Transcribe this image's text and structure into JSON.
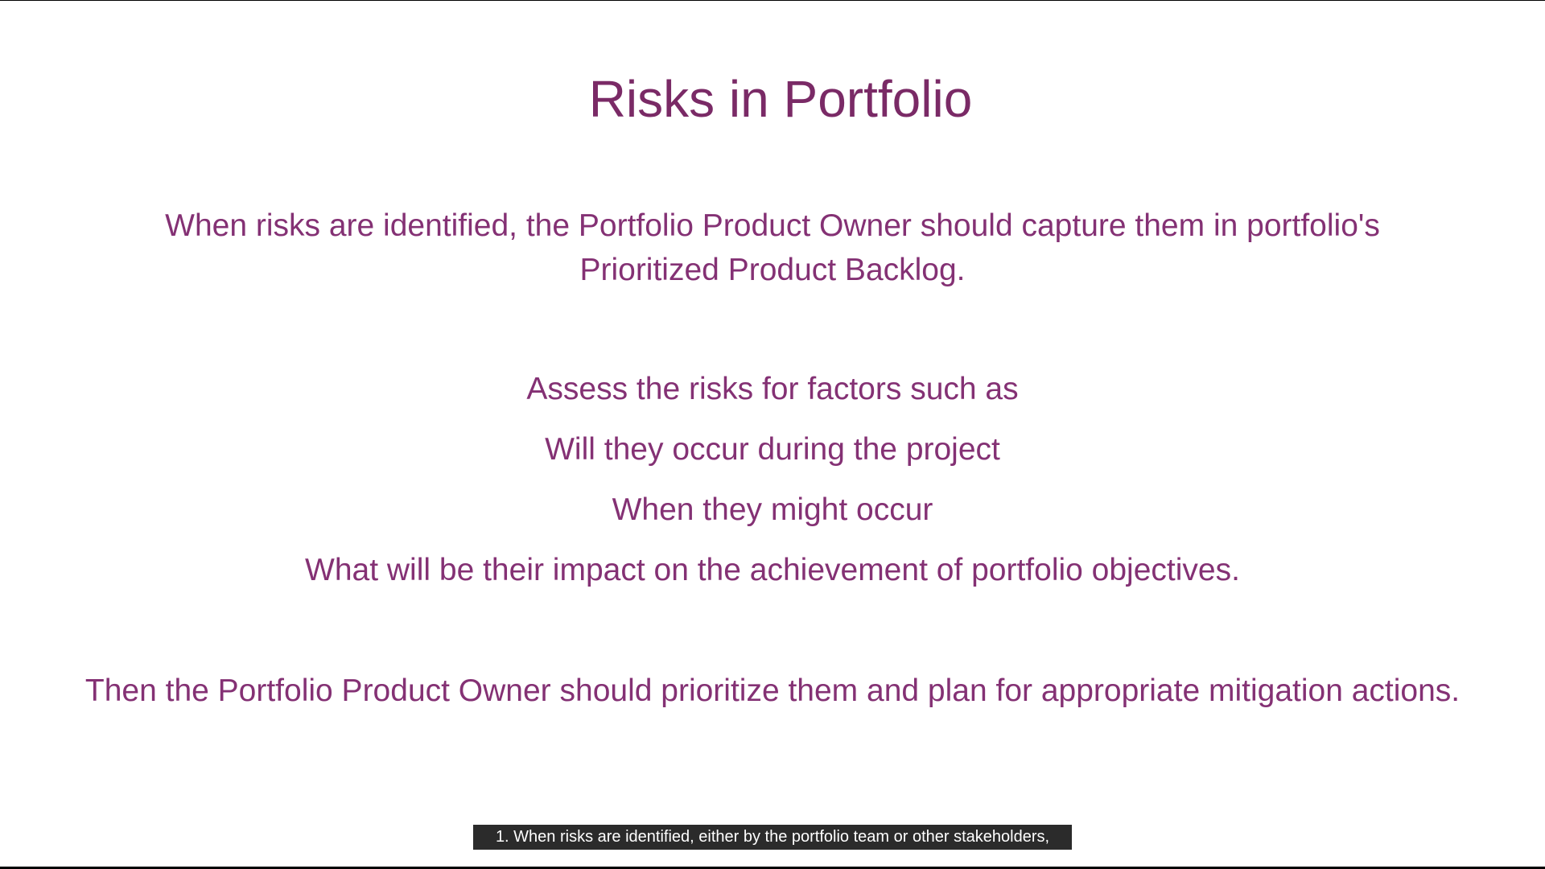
{
  "slide": {
    "title": "Risks in Portfolio",
    "paragraph_1": "When risks are identified, the Portfolio Product Owner should capture them in portfolio's Prioritized Product Backlog.",
    "assess_heading": "Assess the risks for factors such as",
    "factor_1": "Will they occur during the project",
    "factor_2": "When they might occur",
    "factor_3": "What will be their impact on the achievement of portfolio objectives.",
    "paragraph_2": "Then the Portfolio Product Owner should prioritize them and plan for appropriate mitigation actions."
  },
  "caption": {
    "text": "1. When risks are identified, either by the portfolio team or other stakeholders,"
  },
  "colors": {
    "text": "#843174",
    "caption_bg": "#2b2b2b"
  }
}
